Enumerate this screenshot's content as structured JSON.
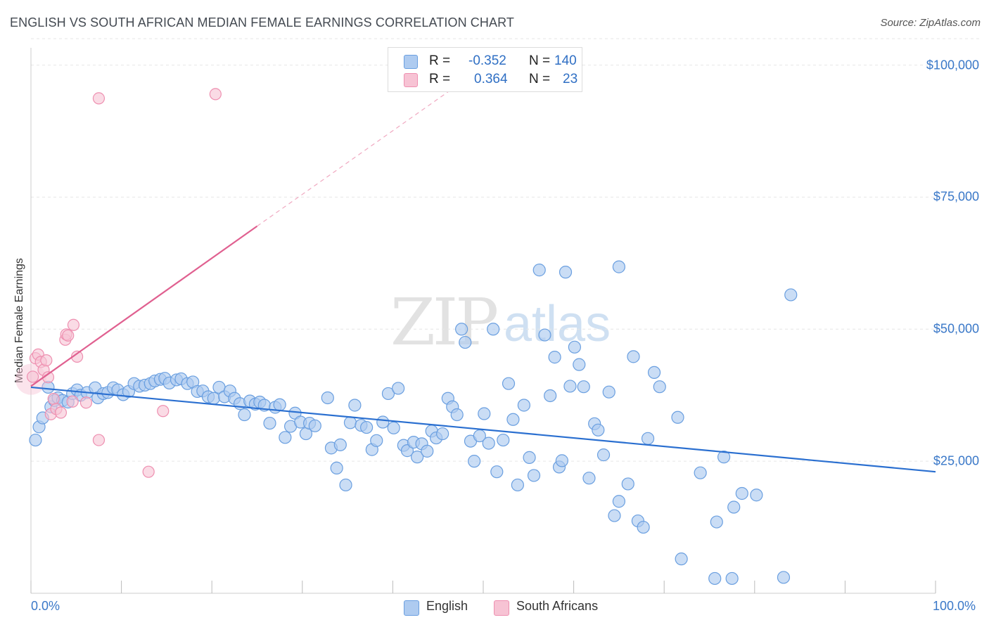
{
  "title": "ENGLISH VS SOUTH AFRICAN MEDIAN FEMALE EARNINGS CORRELATION CHART",
  "source": "Source: ZipAtlas.com",
  "watermark": {
    "zip": "ZIP",
    "atlas": "atlas"
  },
  "legend": {
    "english": {
      "r_label": "R =",
      "r_value": "-0.352",
      "n_label": "N =",
      "n_value": "140"
    },
    "south_african": {
      "r_label": "R =",
      "r_value": "0.364",
      "n_label": "N =",
      "n_value": "23"
    }
  },
  "bottom_legend": {
    "english": "English",
    "south_african": "South Africans"
  },
  "colors": {
    "english": "#6a9fe0",
    "english_fill": "#aecbf0",
    "english_line": "#2a6fd0",
    "south_african": "#ee8fb0",
    "south_african_fill": "#f7c3d4",
    "south_african_line": "#e06090",
    "axis_text": "#3a78c8",
    "grid": "#e6e6e6"
  },
  "chart_data": {
    "type": "scatter",
    "title": "ENGLISH VS SOUTH AFRICAN MEDIAN FEMALE EARNINGS CORRELATION CHART",
    "xlabel": "",
    "ylabel": "Median Female Earnings",
    "xlim": [
      0,
      100
    ],
    "ylim": [
      0,
      105000
    ],
    "x_tick_labels": [
      "0.0%",
      "100.0%"
    ],
    "y_ticks": [
      25000,
      50000,
      75000,
      100000
    ],
    "y_tick_labels": [
      "$25,000",
      "$50,000",
      "$75,000",
      "$100,000"
    ],
    "grid": true,
    "series": [
      {
        "name": "English",
        "trend": {
          "x": [
            0,
            100
          ],
          "y": [
            39000,
            23000
          ]
        },
        "points": [
          [
            0.5,
            29000
          ],
          [
            0.9,
            31500
          ],
          [
            1.3,
            33200
          ],
          [
            1.9,
            39000
          ],
          [
            2.2,
            35300
          ],
          [
            2.6,
            36500
          ],
          [
            3.0,
            37000
          ],
          [
            3.5,
            36500
          ],
          [
            4.1,
            36200
          ],
          [
            4.6,
            37800
          ],
          [
            5.1,
            38500
          ],
          [
            5.5,
            37500
          ],
          [
            6.2,
            38000
          ],
          [
            7.1,
            38900
          ],
          [
            7.4,
            37000
          ],
          [
            8.0,
            37800
          ],
          [
            8.5,
            38000
          ],
          [
            9.1,
            38900
          ],
          [
            9.6,
            38500
          ],
          [
            10.2,
            37600
          ],
          [
            10.8,
            38200
          ],
          [
            11.4,
            39700
          ],
          [
            12.0,
            39200
          ],
          [
            12.6,
            39400
          ],
          [
            13.2,
            39700
          ],
          [
            13.7,
            40200
          ],
          [
            14.3,
            40500
          ],
          [
            14.8,
            40700
          ],
          [
            15.3,
            39800
          ],
          [
            16.1,
            40400
          ],
          [
            16.6,
            40600
          ],
          [
            17.3,
            39700
          ],
          [
            17.9,
            40000
          ],
          [
            18.4,
            38200
          ],
          [
            19.0,
            38300
          ],
          [
            19.6,
            37200
          ],
          [
            20.2,
            36900
          ],
          [
            20.8,
            39000
          ],
          [
            21.4,
            37200
          ],
          [
            22.0,
            38300
          ],
          [
            22.5,
            36900
          ],
          [
            23.1,
            35900
          ],
          [
            23.6,
            33800
          ],
          [
            24.2,
            36400
          ],
          [
            24.8,
            35800
          ],
          [
            25.3,
            36200
          ],
          [
            25.8,
            35600
          ],
          [
            26.4,
            32200
          ],
          [
            27.0,
            35200
          ],
          [
            27.5,
            35700
          ],
          [
            28.1,
            29500
          ],
          [
            28.7,
            31600
          ],
          [
            29.2,
            34100
          ],
          [
            29.8,
            32400
          ],
          [
            30.4,
            30200
          ],
          [
            30.8,
            32200
          ],
          [
            31.4,
            31700
          ],
          [
            32.8,
            37000
          ],
          [
            33.2,
            27500
          ],
          [
            33.8,
            23700
          ],
          [
            34.2,
            28100
          ],
          [
            34.8,
            20500
          ],
          [
            35.3,
            32300
          ],
          [
            35.8,
            35600
          ],
          [
            36.5,
            31800
          ],
          [
            37.1,
            31400
          ],
          [
            37.7,
            27200
          ],
          [
            38.2,
            28900
          ],
          [
            38.9,
            32400
          ],
          [
            39.5,
            37800
          ],
          [
            40.1,
            31300
          ],
          [
            40.6,
            38800
          ],
          [
            41.2,
            28000
          ],
          [
            41.6,
            27000
          ],
          [
            42.3,
            28600
          ],
          [
            42.7,
            25800
          ],
          [
            43.2,
            28300
          ],
          [
            43.8,
            26900
          ],
          [
            44.3,
            30700
          ],
          [
            44.8,
            29400
          ],
          [
            45.5,
            30200
          ],
          [
            46.1,
            36900
          ],
          [
            46.6,
            35300
          ],
          [
            47.1,
            33800
          ],
          [
            47.6,
            50000
          ],
          [
            48.0,
            47500
          ],
          [
            48.6,
            28800
          ],
          [
            49.0,
            25000
          ],
          [
            49.6,
            29800
          ],
          [
            50.1,
            34000
          ],
          [
            50.6,
            28400
          ],
          [
            51.1,
            50000
          ],
          [
            51.5,
            23000
          ],
          [
            52.2,
            29000
          ],
          [
            52.8,
            39700
          ],
          [
            53.3,
            32900
          ],
          [
            53.8,
            20500
          ],
          [
            54.5,
            35600
          ],
          [
            55.1,
            25700
          ],
          [
            55.6,
            22300
          ],
          [
            56.2,
            61200
          ],
          [
            56.8,
            48900
          ],
          [
            57.4,
            37400
          ],
          [
            57.9,
            44700
          ],
          [
            58.4,
            23900
          ],
          [
            58.7,
            25100
          ],
          [
            59.1,
            60800
          ],
          [
            59.6,
            39200
          ],
          [
            60.1,
            46600
          ],
          [
            60.6,
            43300
          ],
          [
            61.1,
            39100
          ],
          [
            61.7,
            21800
          ],
          [
            62.3,
            32100
          ],
          [
            62.7,
            30900
          ],
          [
            63.3,
            26200
          ],
          [
            63.9,
            38100
          ],
          [
            64.5,
            14700
          ],
          [
            65.0,
            61800
          ],
          [
            65.0,
            17400
          ],
          [
            66.0,
            20700
          ],
          [
            66.6,
            44800
          ],
          [
            67.1,
            13700
          ],
          [
            67.7,
            12500
          ],
          [
            68.2,
            29300
          ],
          [
            68.9,
            41800
          ],
          [
            69.5,
            39100
          ],
          [
            71.5,
            33300
          ],
          [
            71.9,
            6500
          ],
          [
            74.0,
            22800
          ],
          [
            75.8,
            13500
          ],
          [
            76.6,
            25800
          ],
          [
            77.7,
            16300
          ],
          [
            75.6,
            2800
          ],
          [
            77.5,
            2800
          ],
          [
            78.6,
            18900
          ],
          [
            80.2,
            18600
          ],
          [
            84.0,
            56500
          ],
          [
            83.2,
            3000
          ]
        ]
      },
      {
        "name": "South Africans",
        "trend": {
          "x": [
            0,
            25
          ],
          "y": [
            39200,
            69500
          ]
        },
        "trend_extended": {
          "x": [
            25,
            47
          ],
          "y": [
            69500,
            96000
          ]
        },
        "points": [
          [
            0.2,
            41000
          ],
          [
            0.5,
            44500
          ],
          [
            0.8,
            45200
          ],
          [
            1.1,
            43800
          ],
          [
            1.4,
            42300
          ],
          [
            1.7,
            44100
          ],
          [
            1.9,
            40900
          ],
          [
            2.2,
            33900
          ],
          [
            2.5,
            36800
          ],
          [
            2.8,
            34900
          ],
          [
            3.3,
            34200
          ],
          [
            3.8,
            48000
          ],
          [
            3.9,
            49000
          ],
          [
            4.1,
            48800
          ],
          [
            4.6,
            36300
          ],
          [
            4.7,
            50800
          ],
          [
            5.1,
            44800
          ],
          [
            6.1,
            36100
          ],
          [
            7.5,
            93700
          ],
          [
            7.5,
            29000
          ],
          [
            13.0,
            23000
          ],
          [
            14.6,
            34500
          ],
          [
            20.4,
            94500
          ]
        ]
      }
    ]
  }
}
